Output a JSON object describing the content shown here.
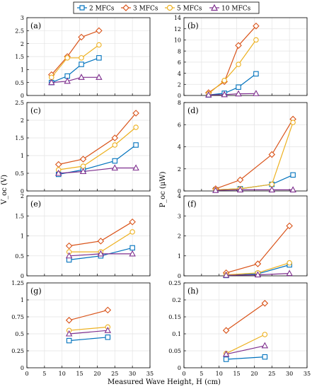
{
  "legend": {
    "placement": "top-center",
    "entries": [
      {
        "name": "2 MFCs",
        "color": "#0072BD",
        "marker": "square"
      },
      {
        "name": "3 MFCs",
        "color": "#D95319",
        "marker": "diamond"
      },
      {
        "name": "5 MFCs",
        "color": "#EDB120",
        "marker": "circle"
      },
      {
        "name": "10 MFCs",
        "color": "#7E2F8E",
        "marker": "triangle"
      }
    ]
  },
  "shared_x_label": "Measured Wave Height, H (cm)",
  "left_y_label": "V_oc (V)",
  "right_y_label": "P_oc (μW)",
  "chart_data": [
    {
      "type": "line",
      "panel_label": "(a)",
      "grid": true,
      "xlim": [
        0,
        35
      ],
      "xticks": [
        0,
        5,
        10,
        15,
        20,
        25,
        30,
        35
      ],
      "show_x_tick_labels": false,
      "ylim": [
        0,
        3
      ],
      "yticks": [
        0,
        0.5,
        1,
        1.5,
        2,
        2.5,
        3
      ],
      "ytick_labels": [
        "0",
        "0.5",
        "1",
        "1.5",
        "2",
        "2.5",
        "3"
      ],
      "series": [
        {
          "name": "2 MFCs",
          "x": [
            7,
            11.5,
            15.5,
            20.5
          ],
          "y": [
            0.5,
            0.75,
            1.2,
            1.45
          ]
        },
        {
          "name": "3 MFCs",
          "x": [
            7,
            11.5,
            15.5,
            20.5
          ],
          "y": [
            0.8,
            1.5,
            2.25,
            2.5
          ]
        },
        {
          "name": "5 MFCs",
          "x": [
            7,
            11.5,
            15.5,
            20.5
          ],
          "y": [
            0.7,
            1.45,
            1.45,
            1.95
          ]
        },
        {
          "name": "10 MFCs",
          "x": [
            7,
            11.5,
            15.5,
            20.5
          ],
          "y": [
            0.5,
            0.55,
            0.7,
            0.7
          ]
        }
      ]
    },
    {
      "type": "line",
      "panel_label": "(b)",
      "grid": true,
      "xlim": [
        0,
        35
      ],
      "xticks": [
        0,
        5,
        10,
        15,
        20,
        25,
        30,
        35
      ],
      "show_x_tick_labels": false,
      "ylim": [
        0,
        14
      ],
      "yticks": [
        0,
        2,
        4,
        6,
        8,
        10,
        12,
        14
      ],
      "ytick_labels": [
        "0",
        "2",
        "4",
        "6",
        "8",
        "10",
        "12",
        "14"
      ],
      "series": [
        {
          "name": "2 MFCs",
          "x": [
            7,
            11.5,
            15.5,
            20.5
          ],
          "y": [
            0.1,
            0.4,
            1.5,
            3.9
          ]
        },
        {
          "name": "3 MFCs",
          "x": [
            7,
            11.5,
            15.5,
            20.5
          ],
          "y": [
            0.5,
            2.5,
            9.0,
            12.5
          ]
        },
        {
          "name": "5 MFCs",
          "x": [
            7,
            11.5,
            15.5,
            20.5
          ],
          "y": [
            0.3,
            2.7,
            5.6,
            10.0
          ]
        },
        {
          "name": "10 MFCs",
          "x": [
            7,
            11.5,
            15.5,
            20.5
          ],
          "y": [
            0.1,
            0.15,
            0.3,
            0.35
          ]
        }
      ]
    },
    {
      "type": "line",
      "panel_label": "(c)",
      "grid": true,
      "xlim": [
        0,
        35
      ],
      "xticks": [
        0,
        5,
        10,
        15,
        20,
        25,
        30,
        35
      ],
      "show_x_tick_labels": false,
      "ylim": [
        0,
        2.5
      ],
      "yticks": [
        0,
        0.5,
        1,
        1.5,
        2,
        2.5
      ],
      "ytick_labels": [
        "0",
        "0.5",
        "1",
        "1.5",
        "2",
        "2.5"
      ],
      "series": [
        {
          "name": "2 MFCs",
          "x": [
            9,
            16,
            25,
            31
          ],
          "y": [
            0.47,
            0.6,
            0.85,
            1.3
          ]
        },
        {
          "name": "3 MFCs",
          "x": [
            9,
            16,
            25,
            31
          ],
          "y": [
            0.75,
            0.9,
            1.5,
            2.2
          ]
        },
        {
          "name": "5 MFCs",
          "x": [
            9,
            16,
            25,
            31
          ],
          "y": [
            0.6,
            0.7,
            1.3,
            1.8
          ]
        },
        {
          "name": "10 MFCs",
          "x": [
            9,
            16,
            25,
            31
          ],
          "y": [
            0.5,
            0.55,
            0.65,
            0.65
          ]
        }
      ]
    },
    {
      "type": "line",
      "panel_label": "(d)",
      "grid": true,
      "xlim": [
        0,
        35
      ],
      "xticks": [
        0,
        5,
        10,
        15,
        20,
        25,
        30,
        35
      ],
      "show_x_tick_labels": false,
      "ylim": [
        0,
        8
      ],
      "yticks": [
        0,
        2,
        4,
        6,
        8
      ],
      "ytick_labels": [
        "0",
        "2",
        "4",
        "6",
        "8"
      ],
      "series": [
        {
          "name": "2 MFCs",
          "x": [
            9,
            16,
            25,
            31
          ],
          "y": [
            0.1,
            0.2,
            0.6,
            1.45
          ]
        },
        {
          "name": "3 MFCs",
          "x": [
            9,
            16,
            25,
            31
          ],
          "y": [
            0.2,
            1.0,
            3.3,
            6.5
          ]
        },
        {
          "name": "5 MFCs",
          "x": [
            9,
            16,
            25,
            31
          ],
          "y": [
            0.1,
            0.2,
            0.6,
            6.2
          ]
        },
        {
          "name": "10 MFCs",
          "x": [
            9,
            16,
            25,
            31
          ],
          "y": [
            0.05,
            0.1,
            0.1,
            0.1
          ]
        }
      ]
    },
    {
      "type": "line",
      "panel_label": "(e)",
      "grid": true,
      "xlim": [
        0,
        35
      ],
      "xticks": [
        0,
        5,
        10,
        15,
        20,
        25,
        30,
        35
      ],
      "show_x_tick_labels": false,
      "ylim": [
        0,
        2
      ],
      "yticks": [
        0,
        0.5,
        1,
        1.5,
        2
      ],
      "ytick_labels": [
        "0",
        "0.5",
        "1",
        "1.5",
        "2"
      ],
      "series": [
        {
          "name": "2 MFCs",
          "x": [
            12,
            21,
            30
          ],
          "y": [
            0.4,
            0.5,
            0.7
          ]
        },
        {
          "name": "3 MFCs",
          "x": [
            12,
            21,
            30
          ],
          "y": [
            0.75,
            0.87,
            1.35
          ]
        },
        {
          "name": "5 MFCs",
          "x": [
            12,
            21,
            30
          ],
          "y": [
            0.6,
            0.6,
            1.1
          ]
        },
        {
          "name": "10 MFCs",
          "x": [
            12,
            21,
            30
          ],
          "y": [
            0.5,
            0.55,
            0.55
          ]
        }
      ]
    },
    {
      "type": "line",
      "panel_label": "(f)",
      "grid": true,
      "xlim": [
        0,
        35
      ],
      "xticks": [
        0,
        5,
        10,
        15,
        20,
        25,
        30,
        35
      ],
      "show_x_tick_labels": false,
      "ylim": [
        0,
        4
      ],
      "yticks": [
        0,
        1,
        2,
        3,
        4
      ],
      "ytick_labels": [
        "0",
        "1",
        "2",
        "3",
        "4"
      ],
      "series": [
        {
          "name": "2 MFCs",
          "x": [
            12,
            21,
            30
          ],
          "y": [
            0.02,
            0.1,
            0.55
          ]
        },
        {
          "name": "3 MFCs",
          "x": [
            12,
            21,
            30
          ],
          "y": [
            0.15,
            0.6,
            2.5
          ]
        },
        {
          "name": "5 MFCs",
          "x": [
            12,
            21,
            30
          ],
          "y": [
            0.05,
            0.15,
            0.65
          ]
        },
        {
          "name": "10 MFCs",
          "x": [
            12,
            21,
            30
          ],
          "y": [
            0.03,
            0.05,
            0.12
          ]
        }
      ]
    },
    {
      "type": "line",
      "panel_label": "(g)",
      "grid": true,
      "xlim": [
        0,
        35
      ],
      "xticks": [
        0,
        5,
        10,
        15,
        20,
        25,
        30,
        35
      ],
      "show_x_tick_labels": true,
      "ylim": [
        0,
        1.25
      ],
      "yticks": [
        0,
        0.25,
        0.5,
        0.75,
        1,
        1.25
      ],
      "ytick_labels": [
        "0",
        "0.25",
        "0.5",
        "0.75",
        "1",
        "1.25"
      ],
      "series": [
        {
          "name": "2 MFCs",
          "x": [
            12,
            23
          ],
          "y": [
            0.4,
            0.45
          ]
        },
        {
          "name": "3 MFCs",
          "x": [
            12,
            23
          ],
          "y": [
            0.7,
            0.85
          ]
        },
        {
          "name": "5 MFCs",
          "x": [
            12,
            23
          ],
          "y": [
            0.55,
            0.6
          ]
        },
        {
          "name": "10 MFCs",
          "x": [
            12,
            23
          ],
          "y": [
            0.5,
            0.55
          ]
        }
      ]
    },
    {
      "type": "line",
      "panel_label": "(h)",
      "grid": true,
      "xlim": [
        0,
        35
      ],
      "xticks": [
        0,
        5,
        10,
        15,
        20,
        25,
        30,
        35
      ],
      "show_x_tick_labels": true,
      "ylim": [
        0,
        0.25
      ],
      "yticks": [
        0,
        0.05,
        0.1,
        0.15,
        0.2,
        0.25
      ],
      "ytick_labels": [
        "0",
        "0.05",
        "0.1",
        "0.15",
        "0.2",
        "0.25"
      ],
      "series": [
        {
          "name": "2 MFCs",
          "x": [
            12,
            23
          ],
          "y": [
            0.025,
            0.032
          ]
        },
        {
          "name": "3 MFCs",
          "x": [
            12,
            23
          ],
          "y": [
            0.11,
            0.19
          ]
        },
        {
          "name": "5 MFCs",
          "x": [
            12,
            23
          ],
          "y": [
            0.042,
            0.098
          ]
        },
        {
          "name": "10 MFCs",
          "x": [
            12,
            23
          ],
          "y": [
            0.04,
            0.065
          ]
        }
      ]
    }
  ]
}
